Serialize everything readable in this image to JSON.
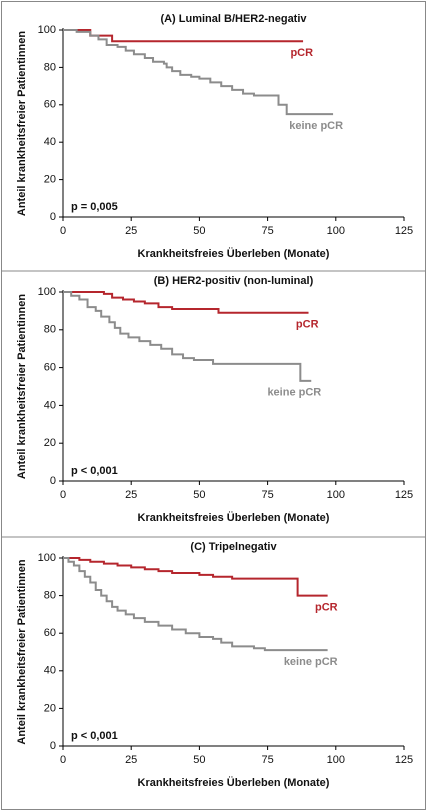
{
  "chart_data": [
    {
      "type": "line",
      "title": "(A) Luminal B/HER2-negativ",
      "xlabel": "Krankheitsfreies Überleben (Monate)",
      "ylabel": "Anteil krankheitsfreier Patientinnen",
      "annotation": "p = 0,005",
      "xlim": [
        0,
        125
      ],
      "xticks": [
        0,
        25,
        50,
        75,
        100,
        125
      ],
      "ylim": [
        0,
        100
      ],
      "yticks": [
        0,
        20,
        40,
        60,
        80,
        100
      ],
      "series": [
        {
          "name": "pCR",
          "color": "#b5262d",
          "x": [
            0,
            10,
            18,
            88
          ],
          "values": [
            100,
            97,
            94,
            94
          ]
        },
        {
          "name": "keine pCR",
          "color": "#8c8c8c",
          "x": [
            0,
            5,
            10,
            13,
            16,
            20,
            23,
            26,
            30,
            33,
            37,
            38,
            40,
            43,
            47,
            50,
            54,
            58,
            62,
            66,
            70,
            79,
            82,
            99
          ],
          "values": [
            100,
            99,
            97,
            95,
            92,
            91,
            89,
            87,
            85,
            83,
            82,
            80,
            78,
            76,
            75,
            74,
            72,
            70,
            68,
            66,
            65,
            60,
            55,
            55
          ]
        }
      ]
    },
    {
      "type": "line",
      "title": "(B) HER2-positiv (non-luminal)",
      "xlabel": "Krankheitsfreies Überleben (Monate)",
      "ylabel": "Anteil krankheitsfreier Patientinnen",
      "annotation": "p < 0,001",
      "xlim": [
        0,
        125
      ],
      "xticks": [
        0,
        25,
        50,
        75,
        100,
        125
      ],
      "ylim": [
        0,
        100
      ],
      "yticks": [
        0,
        20,
        40,
        60,
        80,
        100
      ],
      "series": [
        {
          "name": "pCR",
          "color": "#b5262d",
          "x": [
            0,
            15,
            18,
            22,
            26,
            30,
            35,
            40,
            57,
            90
          ],
          "values": [
            100,
            99,
            97,
            96,
            95,
            94,
            92,
            91,
            89,
            89
          ]
        },
        {
          "name": "keine pCR",
          "color": "#8c8c8c",
          "x": [
            0,
            3,
            6,
            9,
            12,
            14,
            17,
            19,
            21,
            24,
            28,
            32,
            36,
            40,
            44,
            48,
            55,
            87,
            91
          ],
          "values": [
            100,
            98,
            96,
            92,
            90,
            87,
            84,
            81,
            78,
            76,
            74,
            72,
            70,
            67,
            65,
            64,
            62,
            53,
            53
          ]
        }
      ]
    },
    {
      "type": "line",
      "title": "(C) Tripelnegativ",
      "xlabel": "Krankheitsfreies Überleben (Monate)",
      "ylabel": "Anteil krankheitsfreier Patientinnen",
      "annotation": "p < 0,001",
      "xlim": [
        0,
        125
      ],
      "xticks": [
        0,
        25,
        50,
        75,
        100,
        125
      ],
      "ylim": [
        0,
        100
      ],
      "yticks": [
        0,
        20,
        40,
        60,
        80,
        100
      ],
      "series": [
        {
          "name": "pCR",
          "color": "#b5262d",
          "x": [
            0,
            6,
            10,
            15,
            20,
            25,
            30,
            35,
            40,
            50,
            55,
            62,
            86,
            97
          ],
          "values": [
            100,
            99,
            98,
            97,
            96,
            95,
            94,
            93,
            92,
            91,
            90,
            89,
            80,
            80
          ]
        },
        {
          "name": "keine pCR",
          "color": "#8c8c8c",
          "x": [
            0,
            2,
            4,
            6,
            8,
            10,
            12,
            14,
            16,
            18,
            20,
            23,
            26,
            30,
            35,
            40,
            45,
            50,
            55,
            58,
            62,
            70,
            74,
            97
          ],
          "values": [
            100,
            98,
            96,
            93,
            90,
            87,
            83,
            80,
            77,
            74,
            72,
            70,
            68,
            66,
            64,
            62,
            60,
            58,
            57,
            55,
            53,
            52,
            51,
            51
          ]
        }
      ]
    }
  ]
}
